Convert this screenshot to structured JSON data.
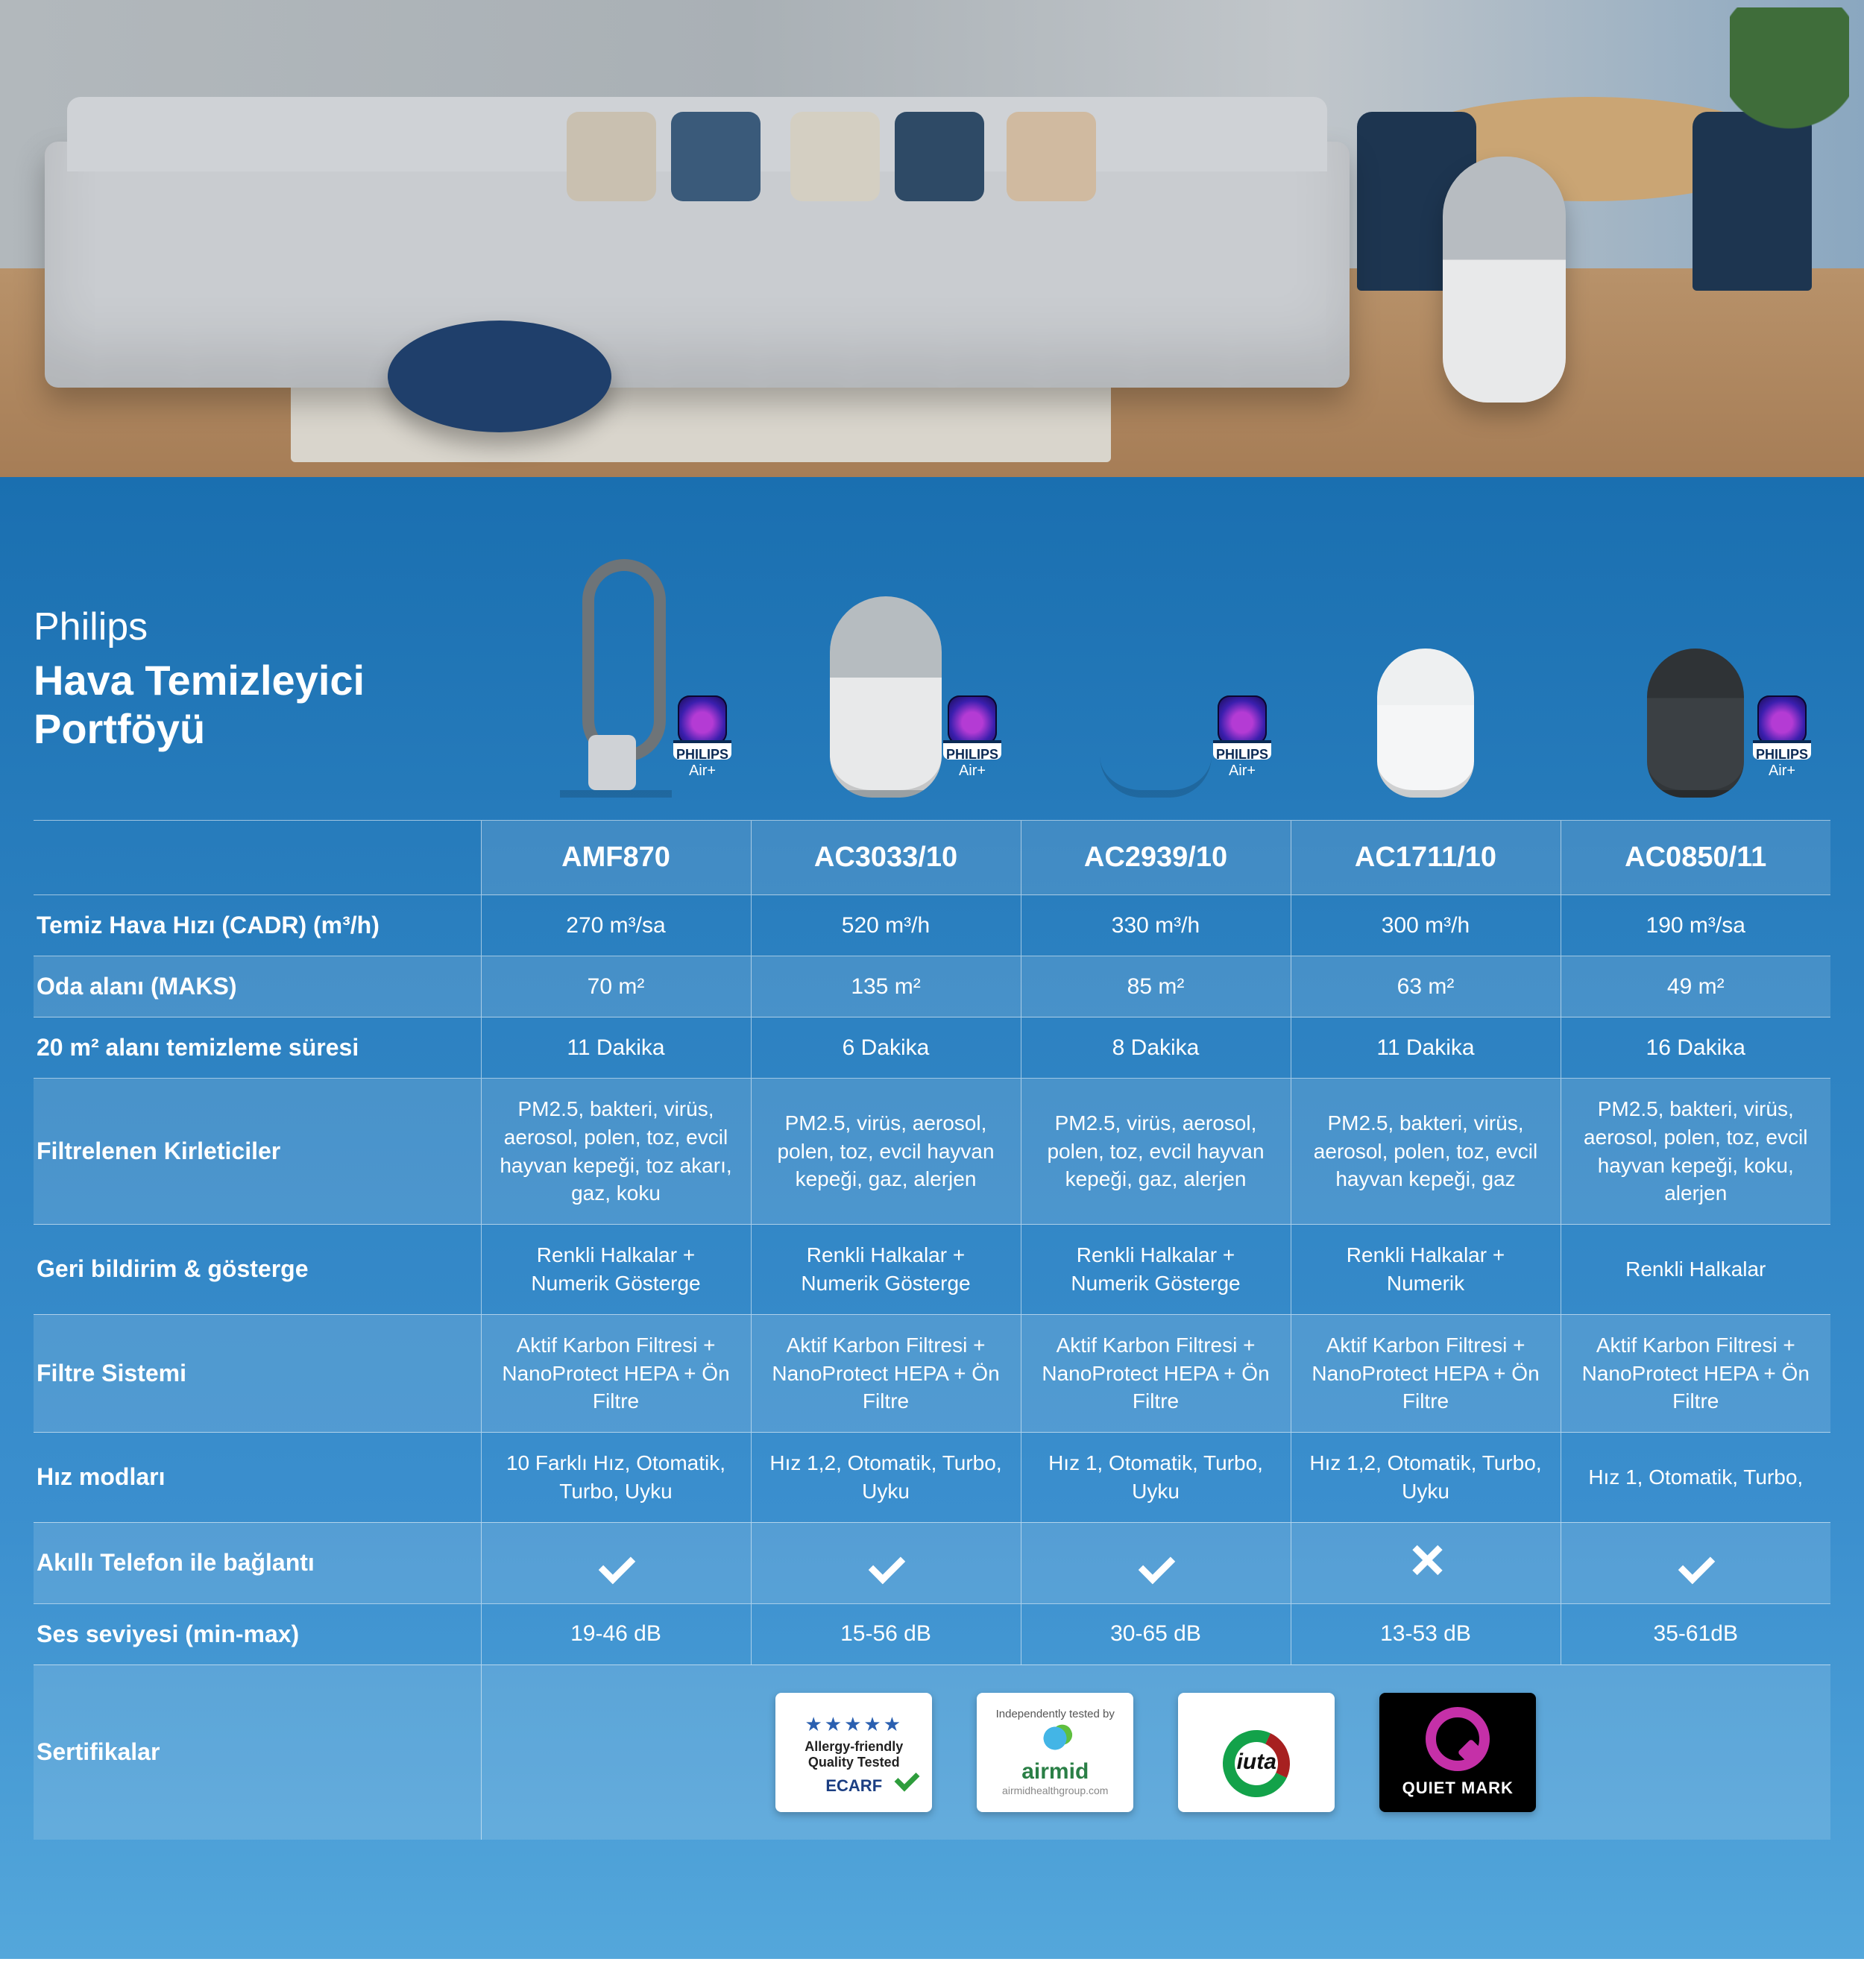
{
  "title": {
    "brand": "Philips",
    "line1": "Hava Temizleyici",
    "line2": "Portföyü"
  },
  "badge": {
    "brand": "PHILIPS",
    "app": "Air+"
  },
  "products": [
    {
      "model": "AMF870",
      "has_app_badge": true,
      "shape": "fan",
      "shape_class": "sh-fan"
    },
    {
      "model": "AC3033/10",
      "has_app_badge": true,
      "shape": "cyl-greytop",
      "shape_class": "sh-cyl greytop"
    },
    {
      "model": "AC2939/10",
      "has_app_badge": true,
      "shape": "cyl-grill",
      "shape_class": "sh-cyl grill"
    },
    {
      "model": "AC1711/10",
      "has_app_badge": false,
      "shape": "cyl-white-sm",
      "shape_class": "sh-cyl white sm"
    },
    {
      "model": "AC0850/11",
      "has_app_badge": true,
      "shape": "cyl-dark-sm",
      "shape_class": "sh-cyl dark sm"
    }
  ],
  "rows": [
    {
      "key": "cadr",
      "label": "Temiz Hava Hızı (CADR) (m³/h)",
      "band": false,
      "values": [
        "270 m³/sa",
        "520 m³/h",
        "330 m³/h",
        "300 m³/h",
        "190 m³/sa"
      ]
    },
    {
      "key": "room",
      "label": "Oda alanı (MAKS)",
      "band": true,
      "values": [
        "70 m²",
        "135 m²",
        "85 m²",
        "63 m²",
        "49 m²"
      ]
    },
    {
      "key": "clean20",
      "label": "20 m² alanı temizleme süresi",
      "band": false,
      "values": [
        "11 Dakika",
        "6 Dakika",
        "8 Dakika",
        "11 Dakika",
        "16 Dakika"
      ]
    },
    {
      "key": "pollutants",
      "label": "Filtrelenen Kirleticiler",
      "band": true,
      "multi": true,
      "values": [
        "PM2.5, bakteri, virüs, aerosol, polen, toz, evcil hayvan kepeği, toz akarı, gaz, koku",
        "PM2.5, virüs, aerosol, polen, toz, evcil hayvan kepeği, gaz, alerjen",
        "PM2.5, virüs, aerosol, polen, toz, evcil hayvan kepeği, gaz, alerjen",
        "PM2.5, bakteri, virüs, aerosol, polen, toz, evcil hayvan kepeği, gaz",
        "PM2.5, bakteri, virüs, aerosol, polen, toz, evcil hayvan kepeği, koku, alerjen"
      ]
    },
    {
      "key": "feedback",
      "label": "Geri bildirim & gösterge",
      "band": false,
      "multi": true,
      "values": [
        "Renkli Halkalar + Numerik Gösterge",
        "Renkli Halkalar + Numerik Gösterge",
        "Renkli Halkalar + Numerik Gösterge",
        "Renkli Halkalar + Numerik",
        "Renkli Halkalar"
      ]
    },
    {
      "key": "filter",
      "label": "Filtre Sistemi",
      "band": true,
      "multi": true,
      "values": [
        "Aktif Karbon Filtresi + NanoProtect HEPA + Ön Filtre",
        "Aktif Karbon Filtresi + NanoProtect HEPA + Ön Filtre",
        "Aktif Karbon Filtresi + NanoProtect HEPA + Ön Filtre",
        "Aktif Karbon Filtresi + NanoProtect HEPA + Ön Filtre",
        "Aktif Karbon Filtresi + NanoProtect HEPA + Ön Filtre"
      ]
    },
    {
      "key": "speeds",
      "label": "Hız modları",
      "band": false,
      "multi": true,
      "values": [
        "10 Farklı Hız, Otomatik, Turbo, Uyku",
        "Hız 1,2, Otomatik, Turbo, Uyku",
        "Hız 1, Otomatik, Turbo, Uyku",
        "Hız 1,2, Otomatik, Turbo, Uyku",
        "Hız 1, Otomatik, Turbo,"
      ]
    },
    {
      "key": "smartphone",
      "label": "Akıllı Telefon ile bağlantı",
      "band": true,
      "icon": true,
      "values": [
        "check",
        "check",
        "check",
        "cross",
        "check"
      ]
    },
    {
      "key": "sound",
      "label": "Ses seviyesi (min-max)",
      "band": false,
      "values": [
        "19-46 dB",
        "15-56 dB",
        "30-65 dB",
        "13-53 dB",
        "35-61dB"
      ]
    }
  ],
  "cert_label": "Sertifikalar",
  "certs": [
    {
      "id": "ecarf",
      "stars": "★★★★★",
      "text": "Allergy-friendly Quality Tested",
      "brand": "ECARF"
    },
    {
      "id": "airmid",
      "top": "Independently tested by",
      "name": "airmid",
      "sub": "airmidhealthgroup.com"
    },
    {
      "id": "iuta",
      "name": "iuta"
    },
    {
      "id": "quiet",
      "name": "QUIET MARK"
    }
  ],
  "colors": {
    "panel_top": "#1a6fb0",
    "panel_bottom": "#54a7db",
    "band": "rgba(255,255,255,.13)",
    "border": "rgba(255,255,255,.55)"
  }
}
